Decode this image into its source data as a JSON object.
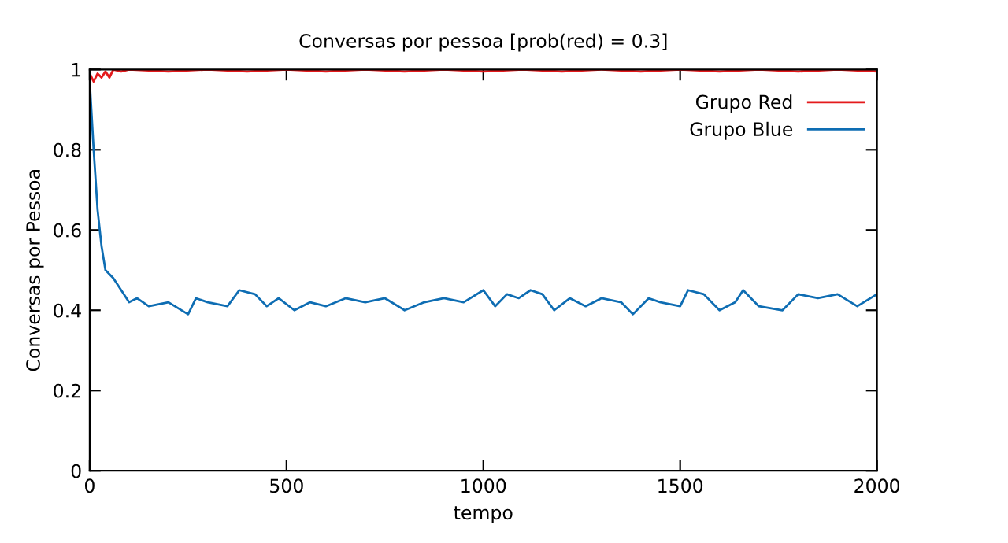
{
  "chart_data": {
    "type": "line",
    "title": "Conversas por pessoa [prob(red) = 0.3]",
    "xlabel": "tempo",
    "ylabel": "Conversas por Pessoa",
    "xlim": [
      0,
      2000
    ],
    "ylim": [
      0,
      1
    ],
    "xticks": [
      0,
      500,
      1000,
      1500,
      2000
    ],
    "yticks": [
      0,
      0.2,
      0.4,
      0.6,
      0.8,
      1
    ],
    "grid": false,
    "legend": "top right",
    "marker": "none",
    "line_style": "solid",
    "series": [
      {
        "name": "Grupo Red",
        "color": "#e41a1c",
        "x": [
          0,
          10,
          20,
          30,
          40,
          50,
          60,
          80,
          100,
          200,
          300,
          400,
          500,
          600,
          700,
          800,
          900,
          1000,
          1100,
          1200,
          1300,
          1400,
          1500,
          1600,
          1700,
          1800,
          1900,
          2000
        ],
        "values": [
          0.99,
          0.97,
          0.99,
          0.98,
          0.995,
          0.98,
          1.0,
          0.995,
          1.0,
          0.995,
          1.0,
          0.995,
          1.0,
          0.995,
          1.0,
          0.995,
          1.0,
          0.995,
          1.0,
          0.995,
          1.0,
          0.995,
          1.0,
          0.995,
          1.0,
          0.995,
          1.0,
          0.995
        ]
      },
      {
        "name": "Grupo Blue",
        "color": "#0e6db3",
        "x": [
          0,
          10,
          20,
          30,
          40,
          60,
          80,
          100,
          120,
          150,
          200,
          250,
          270,
          300,
          350,
          380,
          420,
          450,
          480,
          520,
          560,
          600,
          650,
          700,
          750,
          800,
          850,
          900,
          950,
          1000,
          1030,
          1060,
          1090,
          1120,
          1150,
          1180,
          1220,
          1260,
          1300,
          1350,
          1380,
          1420,
          1450,
          1500,
          1520,
          1560,
          1600,
          1640,
          1660,
          1700,
          1760,
          1800,
          1850,
          1900,
          1950,
          2000
        ],
        "values": [
          0.97,
          0.8,
          0.65,
          0.56,
          0.5,
          0.48,
          0.45,
          0.42,
          0.43,
          0.41,
          0.42,
          0.39,
          0.43,
          0.42,
          0.41,
          0.45,
          0.44,
          0.41,
          0.43,
          0.4,
          0.42,
          0.41,
          0.43,
          0.42,
          0.43,
          0.4,
          0.42,
          0.43,
          0.42,
          0.45,
          0.41,
          0.44,
          0.43,
          0.45,
          0.44,
          0.4,
          0.43,
          0.41,
          0.43,
          0.42,
          0.39,
          0.43,
          0.42,
          0.41,
          0.45,
          0.44,
          0.4,
          0.42,
          0.45,
          0.41,
          0.4,
          0.44,
          0.43,
          0.44,
          0.41,
          0.44
        ]
      }
    ]
  }
}
